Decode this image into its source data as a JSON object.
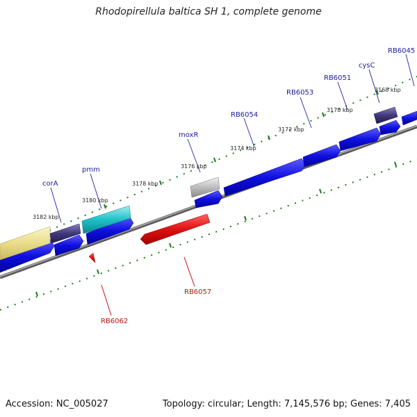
{
  "title": "Rhodopirellula baltica SH 1, complete genome",
  "footer": {
    "accession": "Accession: NC_005027",
    "summary": "Topology: circular; Length: 7,145,576 bp; Genes: 7,405"
  },
  "colors": {
    "forward_gene": "#1010e0",
    "reverse_gene": "#e01010",
    "backbone": "#808080",
    "tick": "#1a7a1a",
    "label_forward": "#1a1aa0",
    "label_reverse": "#c01010"
  },
  "ticks": [
    "3168 kbp",
    "3170 kbp",
    "3172 kbp",
    "3174 kbp",
    "3176 kbp",
    "3178 kbp",
    "3180 kbp",
    "3182 kbp"
  ],
  "gene_labels": {
    "forward": [
      "RB6045",
      "cysC",
      "RB6051",
      "RB6053",
      "RB6054",
      "moxR",
      "pmm",
      "corA"
    ],
    "reverse": [
      "RB6057",
      "RB6062"
    ]
  }
}
